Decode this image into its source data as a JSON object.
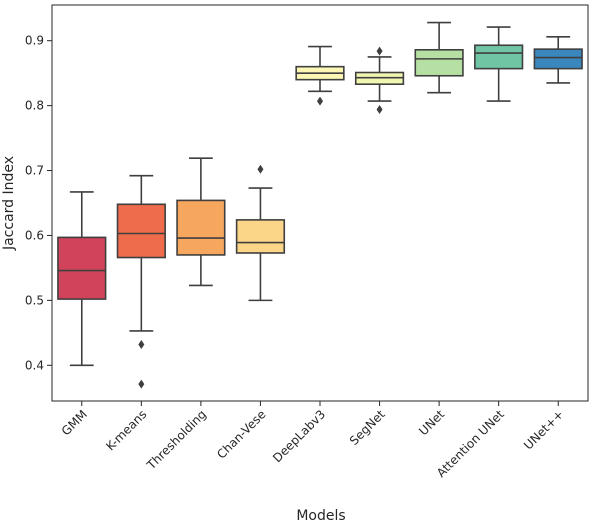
{
  "chart_data": {
    "type": "box",
    "xlabel": "Models",
    "ylabel": "Jaccard Index",
    "ylim": [
      0.345,
      0.955
    ],
    "yticks": [
      0.4,
      0.5,
      0.6,
      0.7,
      0.8,
      0.9
    ],
    "categories": [
      "GMM",
      "K-means",
      "Thresholding",
      "Chan-Vese",
      "DeepLabv3",
      "SegNet",
      "UNet",
      "Attention UNet",
      "UNet++"
    ],
    "boxes": [
      {
        "color": "#d0435a",
        "whislo": 0.4,
        "q1": 0.502,
        "med": 0.546,
        "q3": 0.597,
        "whishi": 0.667,
        "fliers": []
      },
      {
        "color": "#ee6c4b",
        "whislo": 0.453,
        "q1": 0.566,
        "med": 0.603,
        "q3": 0.648,
        "whishi": 0.692,
        "fliers": [
          0.432,
          0.371
        ]
      },
      {
        "color": "#f7a65e",
        "whislo": 0.523,
        "q1": 0.57,
        "med": 0.596,
        "q3": 0.654,
        "whishi": 0.719,
        "fliers": []
      },
      {
        "color": "#fbd588",
        "whislo": 0.5,
        "q1": 0.573,
        "med": 0.589,
        "q3": 0.624,
        "whishi": 0.673,
        "fliers": [
          0.702
        ]
      },
      {
        "color": "#fdf6b5",
        "whislo": 0.822,
        "q1": 0.84,
        "med": 0.85,
        "q3": 0.86,
        "whishi": 0.891,
        "fliers": [
          0.807
        ]
      },
      {
        "color": "#f2f7b0",
        "whislo": 0.807,
        "q1": 0.833,
        "med": 0.843,
        "q3": 0.851,
        "whishi": 0.875,
        "fliers": [
          0.794,
          0.884
        ]
      },
      {
        "color": "#b6e0a3",
        "whislo": 0.82,
        "q1": 0.846,
        "med": 0.872,
        "q3": 0.886,
        "whishi": 0.928,
        "fliers": []
      },
      {
        "color": "#6fc5a4",
        "whislo": 0.807,
        "q1": 0.857,
        "med": 0.881,
        "q3": 0.893,
        "whishi": 0.921,
        "fliers": []
      },
      {
        "color": "#3a87bd",
        "whislo": 0.835,
        "q1": 0.857,
        "med": 0.874,
        "q3": 0.887,
        "whishi": 0.906,
        "fliers": []
      }
    ]
  }
}
